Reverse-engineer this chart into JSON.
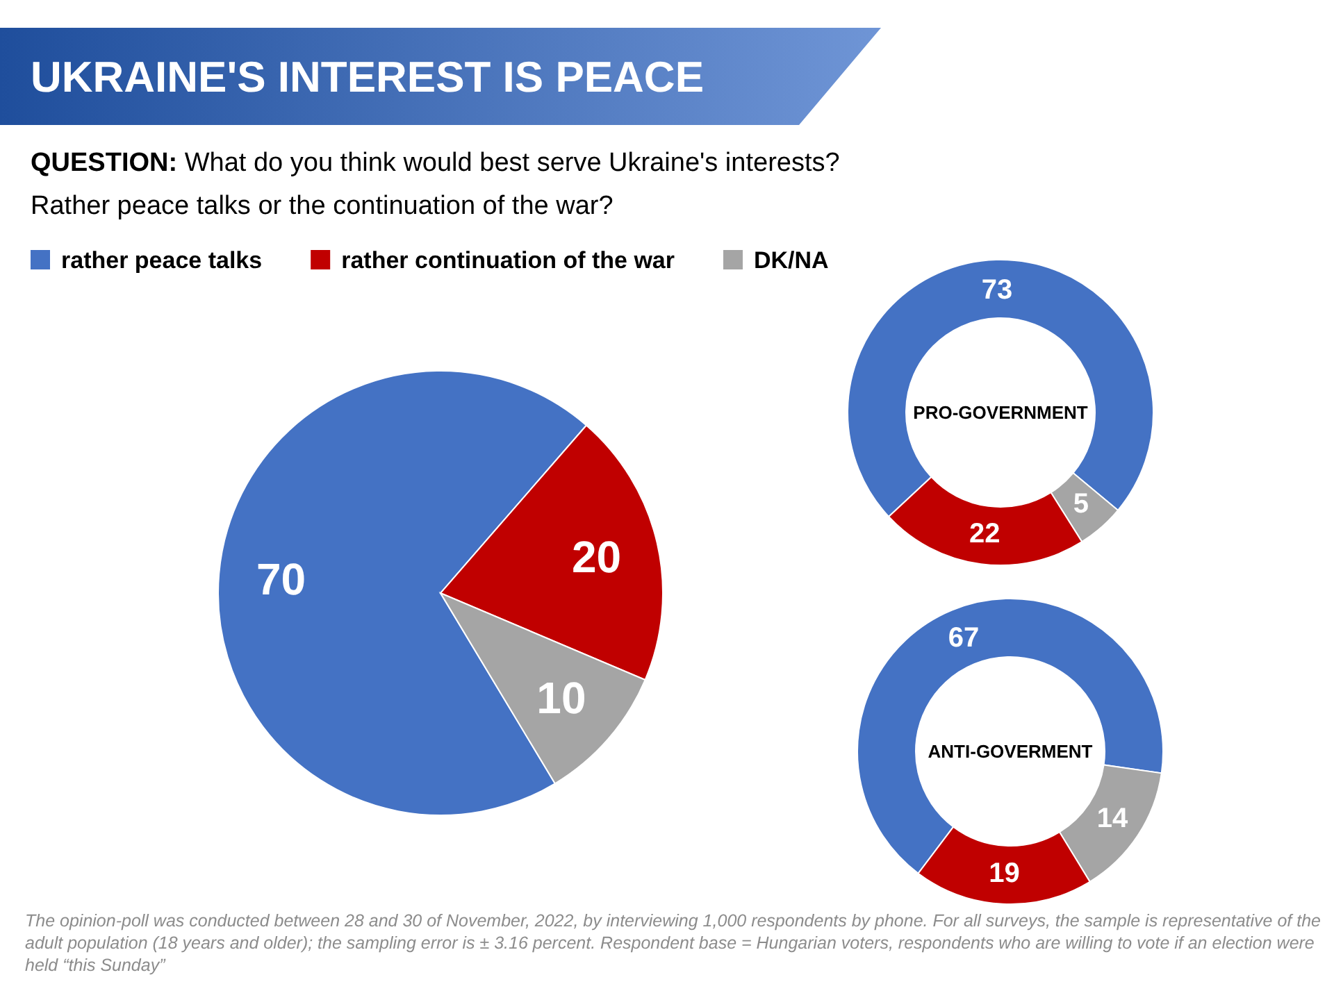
{
  "chart_data": [
    {
      "type": "pie",
      "title": "UKRAINE'S INTEREST IS PEACE",
      "subtitle": "QUESTION: What do you think would best serve Ukraine's interests? Rather peace talks or the continuation of the war?",
      "categories": [
        "rather peace talks",
        "rather continuation of the war",
        "DK/NA"
      ],
      "values": [
        70,
        20,
        10
      ],
      "colors": [
        "#4472c4",
        "#c00000",
        "#a5a5a5"
      ],
      "data_labels": true,
      "legend": "top left",
      "annotations": [
        "The opinion-poll was conducted between 28 and 30 of November, 2022, by interviewing 1,000 respondents by phone. For all surveys, the sample is representative of the adult population (18 years and older); the sampling error is ± 3.16 percent. Respondent base = Hungarian voters, respondents who are willing to vote if an election were held “this Sunday”"
      ]
    },
    {
      "type": "donut",
      "title": "PRO-GOVERNMENT",
      "categories": [
        null,
        null,
        null
      ],
      "values": [
        73,
        5,
        22
      ],
      "colors": [
        "#4472c4",
        "#a5a5a5",
        "#c00000"
      ],
      "data_labels": true
    },
    {
      "type": "donut",
      "title": "ANTI-GOVERMENT",
      "categories": [
        null,
        null,
        null
      ],
      "values": [
        67,
        14,
        19
      ],
      "colors": [
        "#4472c4",
        "#a5a5a5",
        "#c00000"
      ],
      "data_labels": true
    }
  ]
}
